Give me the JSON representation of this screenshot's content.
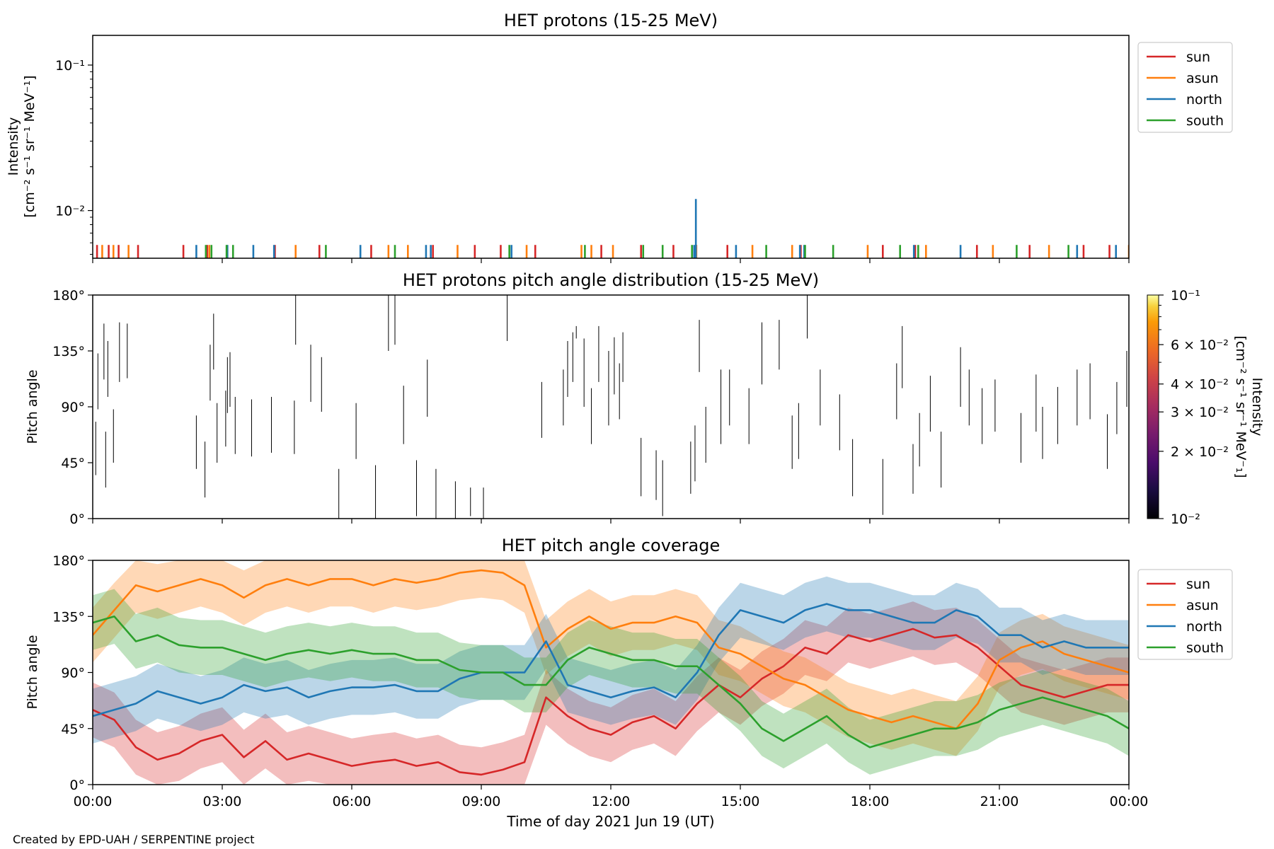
{
  "figure": {
    "xlabel": "Time of day 2021 Jun 19 (UT)",
    "credit": "Created by EPD-UAH / SERPENTINE project",
    "time_ticks": [
      "00:00",
      "03:00",
      "06:00",
      "09:00",
      "12:00",
      "15:00",
      "18:00",
      "21:00",
      "00:00"
    ],
    "time_range_hours": [
      0,
      24
    ]
  },
  "colors": {
    "sun": "#d62728",
    "asun": "#ff7f0e",
    "north": "#1f77b4",
    "south": "#2ca02c"
  },
  "chart_data": [
    {
      "type": "line",
      "title": "HET protons (15-25 MeV)",
      "ylabel_line1": "Intensity",
      "ylabel_line2": "[cm⁻² s⁻¹ sr⁻¹ MeV⁻¹]",
      "yscale": "log",
      "ylim": [
        0.0047,
        0.16
      ],
      "yticks": [
        {
          "value": 0.01,
          "label": "10⁻²"
        },
        {
          "value": 0.1,
          "label": "10⁻¹"
        }
      ],
      "legend_position": "outside-right-top",
      "grid": false,
      "series": [
        {
          "name": "sun",
          "x": [
            0.1,
            0.37,
            0.6,
            1.05,
            2.1,
            2.65,
            4.22,
            5.25,
            6.45,
            7.88,
            8.85,
            9.45,
            10.25,
            11.78,
            12.7,
            13.45,
            13.98,
            14.7,
            16.4,
            18.3,
            19.05,
            20.48,
            21.7,
            22.95,
            23.55
          ],
          "values": [
            0.0058,
            0.0058,
            0.0058,
            0.0058,
            0.0058,
            0.0058,
            0.0058,
            0.0058,
            0.0058,
            0.0058,
            0.0058,
            0.0058,
            0.0058,
            0.0058,
            0.0058,
            0.0058,
            0.0058,
            0.0058,
            0.0058,
            0.0058,
            0.0058,
            0.0058,
            0.0058,
            0.0058,
            0.0058
          ]
        },
        {
          "name": "asun",
          "x": [
            0.22,
            0.48,
            0.83,
            2.7,
            4.7,
            6.85,
            7.3,
            8.45,
            10.05,
            11.32,
            11.55,
            12.05,
            13.98,
            15.28,
            16.2,
            17.95,
            19.3,
            20.85,
            22.15,
            24.0
          ],
          "values": [
            0.0058,
            0.0058,
            0.0058,
            0.0058,
            0.0058,
            0.0058,
            0.0058,
            0.0058,
            0.0058,
            0.0058,
            0.0058,
            0.0058,
            0.0058,
            0.0058,
            0.0058,
            0.0058,
            0.0058,
            0.0058,
            0.0058,
            0.0058
          ]
        },
        {
          "name": "north",
          "x": [
            2.4,
            3.12,
            3.72,
            4.2,
            6.2,
            7.72,
            7.83,
            9.7,
            13.93,
            13.97,
            14.9,
            16.38,
            16.48,
            19.02,
            20.1,
            22.8,
            23.7
          ],
          "values": [
            0.0058,
            0.0058,
            0.0058,
            0.0058,
            0.0058,
            0.0058,
            0.0058,
            0.0058,
            0.0058,
            0.012,
            0.0058,
            0.0058,
            0.0058,
            0.0058,
            0.0058,
            0.0058,
            0.0058
          ]
        },
        {
          "name": "south",
          "x": [
            2.62,
            2.75,
            3.1,
            3.25,
            5.4,
            7.0,
            9.65,
            11.4,
            12.75,
            13.2,
            13.88,
            15.6,
            16.5,
            17.15,
            18.7,
            19.12,
            21.4,
            22.6
          ],
          "values": [
            0.0058,
            0.0058,
            0.0058,
            0.0058,
            0.0058,
            0.0058,
            0.0058,
            0.0058,
            0.0058,
            0.0058,
            0.0058,
            0.0058,
            0.0058,
            0.0058,
            0.0058,
            0.0058,
            0.0058,
            0.0058
          ]
        }
      ]
    },
    {
      "type": "heatmap",
      "title": "HET protons pitch angle distribution (15-25 MeV)",
      "ylabel": "Pitch angle",
      "ylim": [
        0,
        180
      ],
      "yticks": [
        "0°",
        "45°",
        "90°",
        "135°",
        "180°"
      ],
      "colorbar": {
        "label_line1": "Intensity",
        "label_line2": "[cm⁻² s⁻¹ sr⁻¹ MeV⁻₁]",
        "scale": "log",
        "range": [
          0.01,
          0.1
        ],
        "colormap": "inferno",
        "tick_labels": [
          "10⁻²",
          "2 × 10⁻²",
          "3 × 10⁻²",
          "4 × 10⁻²",
          "6 × 10⁻²",
          "10⁻¹"
        ],
        "tick_values": [
          0.01,
          0.02,
          0.03,
          0.04,
          0.06,
          0.1
        ]
      },
      "marks": [
        {
          "t": 0.07,
          "pa": [
            35,
            78
          ]
        },
        {
          "t": 0.12,
          "pa": [
            88,
            133
          ]
        },
        {
          "t": 0.26,
          "pa": [
            112,
            157
          ]
        },
        {
          "t": 0.3,
          "pa": [
            25,
            70
          ]
        },
        {
          "t": 0.35,
          "pa": [
            98,
            143
          ]
        },
        {
          "t": 0.48,
          "pa": [
            45,
            88
          ]
        },
        {
          "t": 0.62,
          "pa": [
            110,
            158
          ]
        },
        {
          "t": 0.8,
          "pa": [
            113,
            157
          ]
        },
        {
          "t": 2.4,
          "pa": [
            40,
            83
          ]
        },
        {
          "t": 2.6,
          "pa": [
            17,
            62
          ]
        },
        {
          "t": 2.72,
          "pa": [
            95,
            140
          ]
        },
        {
          "t": 2.8,
          "pa": [
            120,
            165
          ]
        },
        {
          "t": 2.88,
          "pa": [
            45,
            93
          ]
        },
        {
          "t": 3.08,
          "pa": [
            58,
            103
          ]
        },
        {
          "t": 3.12,
          "pa": [
            85,
            130
          ]
        },
        {
          "t": 3.18,
          "pa": [
            90,
            134
          ]
        },
        {
          "t": 3.3,
          "pa": [
            52,
            98
          ]
        },
        {
          "t": 3.68,
          "pa": [
            50,
            96
          ]
        },
        {
          "t": 4.14,
          "pa": [
            53,
            98
          ]
        },
        {
          "t": 4.67,
          "pa": [
            52,
            95
          ]
        },
        {
          "t": 4.7,
          "pa": [
            140,
            180
          ]
        },
        {
          "t": 5.05,
          "pa": [
            94,
            140
          ]
        },
        {
          "t": 5.3,
          "pa": [
            86,
            130
          ]
        },
        {
          "t": 5.7,
          "pa": [
            0,
            40
          ]
        },
        {
          "t": 6.1,
          "pa": [
            48,
            93
          ]
        },
        {
          "t": 6.55,
          "pa": [
            0,
            43
          ]
        },
        {
          "t": 6.85,
          "pa": [
            135,
            180
          ]
        },
        {
          "t": 7.0,
          "pa": [
            140,
            180
          ]
        },
        {
          "t": 7.2,
          "pa": [
            60,
            107
          ]
        },
        {
          "t": 7.5,
          "pa": [
            2,
            47
          ]
        },
        {
          "t": 7.75,
          "pa": [
            82,
            128
          ]
        },
        {
          "t": 7.95,
          "pa": [
            0,
            40
          ]
        },
        {
          "t": 8.4,
          "pa": [
            0,
            30
          ]
        },
        {
          "t": 8.75,
          "pa": [
            2,
            25
          ]
        },
        {
          "t": 9.05,
          "pa": [
            0,
            25
          ]
        },
        {
          "t": 9.6,
          "pa": [
            143,
            180
          ]
        },
        {
          "t": 10.4,
          "pa": [
            65,
            110
          ]
        },
        {
          "t": 10.9,
          "pa": [
            75,
            120
          ]
        },
        {
          "t": 11.0,
          "pa": [
            98,
            143
          ]
        },
        {
          "t": 11.12,
          "pa": [
            110,
            150
          ]
        },
        {
          "t": 11.2,
          "pa": [
            145,
            155
          ]
        },
        {
          "t": 11.38,
          "pa": [
            90,
            145
          ]
        },
        {
          "t": 11.55,
          "pa": [
            60,
            105
          ]
        },
        {
          "t": 11.72,
          "pa": [
            110,
            155
          ]
        },
        {
          "t": 11.95,
          "pa": [
            75,
            135
          ]
        },
        {
          "t": 12.08,
          "pa": [
            100,
            146
          ]
        },
        {
          "t": 12.2,
          "pa": [
            80,
            125
          ]
        },
        {
          "t": 12.28,
          "pa": [
            110,
            150
          ]
        },
        {
          "t": 12.7,
          "pa": [
            18,
            65
          ]
        },
        {
          "t": 13.05,
          "pa": [
            15,
            55
          ]
        },
        {
          "t": 13.2,
          "pa": [
            2,
            47
          ]
        },
        {
          "t": 13.85,
          "pa": [
            20,
            62
          ]
        },
        {
          "t": 13.95,
          "pa": [
            30,
            75
          ]
        },
        {
          "t": 14.05,
          "pa": [
            118,
            160
          ]
        },
        {
          "t": 14.2,
          "pa": [
            45,
            90
          ]
        },
        {
          "t": 14.55,
          "pa": [
            60,
            120
          ]
        },
        {
          "t": 14.75,
          "pa": [
            75,
            120
          ]
        },
        {
          "t": 15.2,
          "pa": [
            60,
            105
          ]
        },
        {
          "t": 15.5,
          "pa": [
            108,
            158
          ]
        },
        {
          "t": 15.9,
          "pa": [
            120,
            160
          ]
        },
        {
          "t": 16.2,
          "pa": [
            40,
            83
          ]
        },
        {
          "t": 16.35,
          "pa": [
            48,
            93
          ]
        },
        {
          "t": 16.55,
          "pa": [
            145,
            180
          ]
        },
        {
          "t": 16.85,
          "pa": [
            75,
            120
          ]
        },
        {
          "t": 17.3,
          "pa": [
            55,
            100
          ]
        },
        {
          "t": 17.6,
          "pa": [
            18,
            64
          ]
        },
        {
          "t": 18.3,
          "pa": [
            3,
            48
          ]
        },
        {
          "t": 18.62,
          "pa": [
            80,
            125
          ]
        },
        {
          "t": 18.75,
          "pa": [
            105,
            155
          ]
        },
        {
          "t": 19.0,
          "pa": [
            20,
            60
          ]
        },
        {
          "t": 19.15,
          "pa": [
            42,
            85
          ]
        },
        {
          "t": 19.4,
          "pa": [
            70,
            115
          ]
        },
        {
          "t": 19.65,
          "pa": [
            25,
            70
          ]
        },
        {
          "t": 20.1,
          "pa": [
            90,
            138
          ]
        },
        {
          "t": 20.3,
          "pa": [
            75,
            120
          ]
        },
        {
          "t": 20.6,
          "pa": [
            60,
            105
          ]
        },
        {
          "t": 20.9,
          "pa": [
            70,
            112
          ]
        },
        {
          "t": 21.5,
          "pa": [
            45,
            85
          ]
        },
        {
          "t": 21.85,
          "pa": [
            70,
            116
          ]
        },
        {
          "t": 22.0,
          "pa": [
            48,
            90
          ]
        },
        {
          "t": 22.35,
          "pa": [
            60,
            106
          ]
        },
        {
          "t": 22.8,
          "pa": [
            75,
            120
          ]
        },
        {
          "t": 23.1,
          "pa": [
            80,
            125
          ]
        },
        {
          "t": 23.5,
          "pa": [
            40,
            84
          ]
        },
        {
          "t": 23.72,
          "pa": [
            68,
            110
          ]
        },
        {
          "t": 23.95,
          "pa": [
            90,
            135
          ]
        }
      ]
    },
    {
      "type": "area",
      "title": "HET pitch angle coverage",
      "ylabel": "Pitch angle",
      "ylim": [
        0,
        180
      ],
      "yticks": [
        "0°",
        "45°",
        "90°",
        "135°",
        "180°"
      ],
      "legend_position": "outside-right-top",
      "x_hours": [
        0,
        0.5,
        1,
        1.5,
        2,
        2.5,
        3,
        3.5,
        4,
        4.5,
        5,
        5.5,
        6,
        6.5,
        7,
        7.5,
        8,
        8.5,
        9,
        9.5,
        10,
        10.5,
        11,
        11.5,
        12,
        12.5,
        13,
        13.5,
        14,
        14.5,
        15,
        15.5,
        16,
        16.5,
        17,
        17.5,
        18,
        18.5,
        19,
        19.5,
        20,
        20.5,
        21,
        21.5,
        22,
        22.5,
        23,
        23.5,
        24
      ],
      "series": [
        {
          "name": "sun",
          "values": [
            60,
            52,
            30,
            20,
            25,
            35,
            40,
            22,
            35,
            20,
            25,
            20,
            15,
            18,
            20,
            15,
            18,
            10,
            8,
            12,
            18,
            70,
            55,
            45,
            40,
            50,
            55,
            45,
            65,
            80,
            70,
            85,
            95,
            110,
            105,
            120,
            115,
            120,
            125,
            118,
            120,
            110,
            95,
            80,
            75,
            70,
            75,
            80,
            80
          ],
          "band": 22
        },
        {
          "name": "asun",
          "values": [
            120,
            140,
            160,
            155,
            160,
            165,
            160,
            150,
            160,
            165,
            160,
            165,
            165,
            160,
            165,
            162,
            165,
            170,
            172,
            170,
            160,
            110,
            125,
            135,
            125,
            130,
            130,
            135,
            130,
            110,
            105,
            95,
            85,
            80,
            70,
            60,
            55,
            50,
            55,
            50,
            45,
            65,
            100,
            110,
            115,
            105,
            100,
            95,
            90
          ],
          "band": 22
        },
        {
          "name": "north",
          "values": [
            55,
            60,
            65,
            75,
            70,
            65,
            70,
            80,
            75,
            78,
            70,
            75,
            78,
            78,
            80,
            75,
            75,
            85,
            90,
            90,
            90,
            115,
            80,
            75,
            70,
            75,
            78,
            70,
            90,
            120,
            140,
            135,
            130,
            140,
            145,
            140,
            140,
            135,
            130,
            130,
            140,
            135,
            120,
            120,
            110,
            115,
            110,
            110,
            110
          ],
          "band": 22
        },
        {
          "name": "south",
          "values": [
            130,
            135,
            115,
            120,
            112,
            110,
            110,
            105,
            100,
            105,
            108,
            105,
            108,
            105,
            105,
            100,
            100,
            92,
            90,
            90,
            80,
            80,
            100,
            110,
            105,
            100,
            100,
            95,
            95,
            80,
            65,
            45,
            35,
            45,
            55,
            40,
            30,
            35,
            40,
            45,
            45,
            50,
            60,
            65,
            70,
            65,
            60,
            55,
            45
          ],
          "band": 22
        }
      ]
    }
  ],
  "legend_labels": [
    "sun",
    "asun",
    "north",
    "south"
  ]
}
